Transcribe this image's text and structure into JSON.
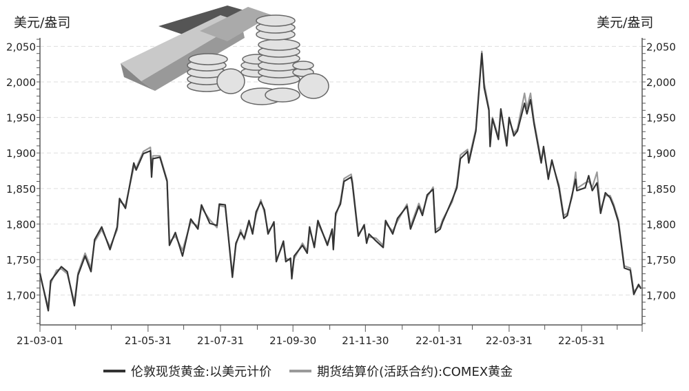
{
  "chart_data": {
    "type": "line",
    "title": "",
    "y_unit_left": "美元/盎司",
    "y_unit_right": "美元/盎司",
    "ylim": [
      1658,
      2062
    ],
    "y_ticks": [
      1700,
      1750,
      1800,
      1850,
      1900,
      1950,
      2000,
      2050
    ],
    "y_tick_labels": [
      "1,700",
      "1,750",
      "1,800",
      "1,850",
      "1,900",
      "1,950",
      "2,000",
      "2,050"
    ],
    "xlim": [
      "2021-03-01",
      "2022-07-21"
    ],
    "x_tick_labels": [
      {
        "date": "2021-03-01",
        "label": "21-03-01"
      },
      {
        "date": "2021-05-31",
        "label": "21-05-31"
      },
      {
        "date": "2021-07-31",
        "label": "21-07-31"
      },
      {
        "date": "2021-09-30",
        "label": "21-09-30"
      },
      {
        "date": "2021-11-30",
        "label": "21-11-30"
      },
      {
        "date": "2022-01-31",
        "label": "22-01-31"
      },
      {
        "date": "2022-03-31",
        "label": "22-03-31"
      },
      {
        "date": "2022-05-31",
        "label": "22-05-31"
      }
    ],
    "x_minor_ticks": [
      "2021-03-31",
      "2021-04-30",
      "2021-06-30",
      "2021-08-31",
      "2021-10-31",
      "2021-12-31",
      "2022-02-28",
      "2022-04-30",
      "2022-06-30"
    ],
    "grid": "horizontal dashed",
    "legend_position": "bottom",
    "x": [
      "2021-03-01",
      "2021-03-08",
      "2021-03-10",
      "2021-03-15",
      "2021-03-19",
      "2021-03-24",
      "2021-03-30",
      "2021-04-02",
      "2021-04-08",
      "2021-04-13",
      "2021-04-16",
      "2021-04-22",
      "2021-04-29",
      "2021-05-05",
      "2021-05-07",
      "2021-05-12",
      "2021-05-19",
      "2021-05-21",
      "2021-05-27",
      "2021-06-02",
      "2021-06-03",
      "2021-06-04",
      "2021-06-10",
      "2021-06-16",
      "2021-06-18",
      "2021-06-23",
      "2021-06-29",
      "2021-07-06",
      "2021-07-12",
      "2021-07-15",
      "2021-07-22",
      "2021-07-28",
      "2021-07-30",
      "2021-08-04",
      "2021-08-10",
      "2021-08-13",
      "2021-08-17",
      "2021-08-20",
      "2021-08-24",
      "2021-08-27",
      "2021-08-30",
      "2021-09-03",
      "2021-09-06",
      "2021-09-09",
      "2021-09-14",
      "2021-09-16",
      "2021-09-22",
      "2021-09-24",
      "2021-09-28",
      "2021-09-29",
      "2021-10-01",
      "2021-10-08",
      "2021-10-12",
      "2021-10-14",
      "2021-10-18",
      "2021-10-21",
      "2021-10-29",
      "2021-11-02",
      "2021-11-03",
      "2021-11-05",
      "2021-11-09",
      "2021-11-12",
      "2021-11-18",
      "2021-11-19",
      "2021-11-24",
      "2021-11-29",
      "2021-12-01",
      "2021-12-03",
      "2021-12-09",
      "2021-12-15",
      "2021-12-17",
      "2021-12-23",
      "2021-12-27",
      "2022-01-04",
      "2022-01-07",
      "2022-01-14",
      "2022-01-17",
      "2022-01-21",
      "2022-01-26",
      "2022-01-28",
      "2022-02-01",
      "2022-02-03",
      "2022-02-11",
      "2022-02-15",
      "2022-02-18",
      "2022-02-24",
      "2022-02-25",
      "2022-03-03",
      "2022-03-08",
      "2022-03-10",
      "2022-03-14",
      "2022-03-15",
      "2022-03-17",
      "2022-03-22",
      "2022-03-24",
      "2022-03-29",
      "2022-03-31",
      "2022-04-04",
      "2022-04-07",
      "2022-04-13",
      "2022-04-15",
      "2022-04-18",
      "2022-04-21",
      "2022-04-27",
      "2022-04-29",
      "2022-05-03",
      "2022-05-06",
      "2022-05-12",
      "2022-05-16",
      "2022-05-19",
      "2022-05-23",
      "2022-05-26",
      "2022-05-27",
      "2022-06-03",
      "2022-06-06",
      "2022-06-09",
      "2022-06-13",
      "2022-06-16",
      "2022-06-20",
      "2022-06-24",
      "2022-06-27",
      "2022-07-01",
      "2022-07-06",
      "2022-07-11",
      "2022-07-14",
      "2022-07-18",
      "2022-07-20"
    ],
    "series": [
      {
        "name": "伦敦现货黄金:以美元计价",
        "color": "#333333",
        "values": [
          1731,
          1678,
          1720,
          1731,
          1740,
          1733,
          1685,
          1728,
          1755,
          1733,
          1778,
          1796,
          1764,
          1796,
          1836,
          1822,
          1886,
          1876,
          1899,
          1903,
          1866,
          1892,
          1894,
          1860,
          1770,
          1788,
          1755,
          1807,
          1793,
          1827,
          1801,
          1798,
          1828,
          1827,
          1725,
          1773,
          1788,
          1780,
          1805,
          1786,
          1817,
          1831,
          1820,
          1786,
          1803,
          1747,
          1776,
          1747,
          1752,
          1723,
          1755,
          1770,
          1759,
          1796,
          1767,
          1805,
          1770,
          1793,
          1764,
          1815,
          1828,
          1860,
          1866,
          1857,
          1783,
          1799,
          1773,
          1786,
          1776,
          1767,
          1805,
          1786,
          1808,
          1825,
          1793,
          1825,
          1812,
          1841,
          1849,
          1788,
          1793,
          1803,
          1834,
          1851,
          1892,
          1902,
          1886,
          1931,
          2040,
          1992,
          1960,
          1909,
          1948,
          1919,
          1962,
          1910,
          1950,
          1924,
          1931,
          1970,
          1955,
          1975,
          1941,
          1886,
          1909,
          1863,
          1890,
          1851,
          1808,
          1812,
          1841,
          1863,
          1847,
          1851,
          1868,
          1847,
          1858,
          1815,
          1844,
          1837,
          1825,
          1803,
          1738,
          1735,
          1701,
          1715,
          1709
        ]
      },
      {
        "name": "期货结算价(活跃合约):COMEX黄金",
        "color": "#9a9a9a",
        "values": [
          1728,
          1683,
          1716,
          1735,
          1737,
          1730,
          1690,
          1731,
          1759,
          1738,
          1775,
          1792,
          1768,
          1792,
          1832,
          1826,
          1880,
          1879,
          1902,
          1908,
          1875,
          1896,
          1896,
          1862,
          1775,
          1783,
          1763,
          1803,
          1797,
          1823,
          1806,
          1795,
          1826,
          1824,
          1730,
          1770,
          1792,
          1778,
          1802,
          1790,
          1813,
          1834,
          1816,
          1790,
          1800,
          1750,
          1772,
          1752,
          1748,
          1727,
          1751,
          1773,
          1762,
          1792,
          1770,
          1801,
          1773,
          1790,
          1770,
          1811,
          1832,
          1864,
          1870,
          1861,
          1786,
          1796,
          1777,
          1782,
          1780,
          1770,
          1801,
          1790,
          1804,
          1828,
          1797,
          1829,
          1816,
          1838,
          1852,
          1792,
          1796,
          1806,
          1831,
          1855,
          1897,
          1905,
          1890,
          1934,
          2043,
          1998,
          1963,
          1915,
          1950,
          1923,
          1958,
          1915,
          1946,
          1928,
          1934,
          1984,
          1963,
          1984,
          1945,
          1890,
          1905,
          1867,
          1887,
          1855,
          1812,
          1815,
          1838,
          1873,
          1850,
          1858,
          1860,
          1852,
          1873,
          1820,
          1840,
          1840,
          1828,
          1806,
          1741,
          1738,
          1705,
          1712,
          1712
        ]
      }
    ]
  },
  "legend": {
    "items": [
      "伦敦现货黄金:以美元计价",
      "期货结算价(活跃合约):COMEX黄金"
    ]
  }
}
